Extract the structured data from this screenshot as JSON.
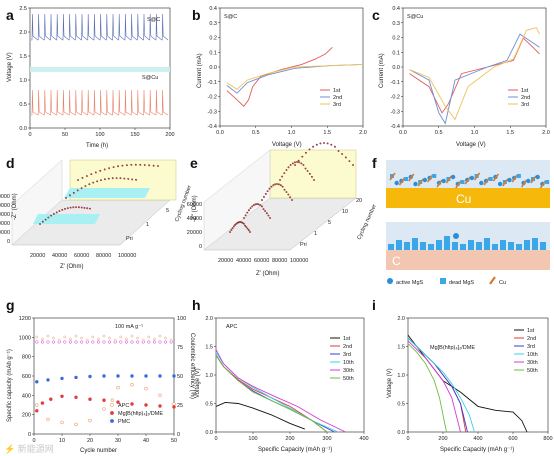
{
  "panels": {
    "a": {
      "label": "a",
      "xlabel": "Time (h)",
      "ylabel": "Voltage (V)",
      "xticks": [
        "0",
        "50",
        "100",
        "150",
        "200"
      ],
      "yticks": [
        "0.0",
        "0.5",
        "1.0",
        "1.5",
        "2.0",
        "2.5"
      ],
      "legend_top": "S@C",
      "legend_bottom": "S@Cu",
      "colors": {
        "top": "#5b6fb5",
        "bottom": "#e8826a"
      }
    },
    "b": {
      "label": "b",
      "inner": "S@C",
      "xlabel": "Voltage (V)",
      "ylabel": "Current (mA)",
      "xticks": [
        "0.0",
        "0.5",
        "1.0",
        "1.5",
        "2.0"
      ],
      "yticks": [
        "-0.4",
        "-0.3",
        "-0.2",
        "-0.1",
        "0.0",
        "0.1",
        "0.2",
        "0.3",
        "0.4"
      ]
    },
    "c": {
      "label": "c",
      "inner": "S@Cu",
      "xlabel": "Voltage (V)",
      "ylabel": "Current (mA)",
      "xticks": [
        "0.0",
        "0.5",
        "1.0",
        "1.5",
        "2.0"
      ],
      "yticks": [
        "-0.4",
        "-0.3",
        "-0.2",
        "-0.1",
        "0.0",
        "0.1",
        "0.2",
        "0.3",
        "0.4"
      ]
    },
    "d": {
      "label": "d",
      "ylabel": "-Z'' (Ohm)",
      "xlabel": "Z' (Ohm)",
      "zlabel": "Cycling number",
      "yticks": [
        "0",
        "20000",
        "40000",
        "60000",
        "80000",
        "100000"
      ],
      "xticks": [
        "20000",
        "40000",
        "60000",
        "80000",
        "100000"
      ],
      "zticks": [
        "Pri",
        "1",
        "5"
      ]
    },
    "e": {
      "label": "e",
      "ylabel": "-Z'' (Ohm)",
      "xlabel": "Z' (Ohm)",
      "zlabel": "Cycling number",
      "yticks": [
        "0",
        "20000",
        "40000",
        "60000"
      ],
      "xticks": [
        "20000",
        "40000",
        "60000",
        "80000",
        "100000"
      ],
      "zticks": [
        "Pri",
        "1",
        "5",
        "10",
        "20"
      ]
    },
    "f": {
      "label": "f",
      "cu": "Cu",
      "c": "C",
      "legend": [
        "active MgS",
        "dead MgS",
        "Cu"
      ]
    },
    "g": {
      "label": "g",
      "xlabel": "Cycle number",
      "ylabel": "Specific capacity (mAh g⁻¹)",
      "y2label": "Coulombic efficiency (%)",
      "xticks": [
        "0",
        "10",
        "20",
        "30",
        "40",
        "50"
      ],
      "yticks": [
        "0",
        "200",
        "400",
        "600",
        "800",
        "1000",
        "1200"
      ],
      "y2ticks": [
        "0",
        "25",
        "50",
        "75",
        "100"
      ],
      "note": "100 mA g⁻¹",
      "legend": [
        "APC",
        "Mg[B(hfip)₄]₂/DME",
        "PMC"
      ]
    },
    "h": {
      "label": "h",
      "inner": "APC",
      "xlabel": "Specific Capacity (mAh g⁻¹)",
      "ylabel": "Voltage (V)",
      "xticks": [
        "0",
        "100",
        "200",
        "300",
        "400"
      ],
      "yticks": [
        "0.0",
        "0.5",
        "1.0",
        "1.5",
        "2.0"
      ]
    },
    "i": {
      "label": "i",
      "inner": "Mg[B(hfip)₄]₂/DME",
      "xlabel": "Specific Capacity (mAh g⁻¹)",
      "ylabel": "Voltage (V)",
      "xticks": [
        "0",
        "200",
        "400",
        "600",
        "800"
      ],
      "yticks": [
        "0.0",
        "0.5",
        "1.0",
        "1.5",
        "2.0"
      ]
    }
  },
  "cv_legend": [
    "1st",
    "2nd",
    "3rd"
  ],
  "cv_colors": [
    "#e25b5b",
    "#6b8fd6",
    "#f0c15a"
  ],
  "gcd_legend": [
    "1st",
    "2nd",
    "3rd",
    "10th",
    "30th",
    "50th"
  ],
  "gcd_colors": [
    "#111111",
    "#e23b3b",
    "#3b3bdb",
    "#33d6e0",
    "#d43bd6",
    "#6bbf3b"
  ],
  "watermark": "⚡ 新能源网",
  "chart_data": [
    {
      "panel": "b",
      "type": "line",
      "xlim": [
        -0.1,
        2.0
      ],
      "ylim": [
        -0.45,
        0.45
      ],
      "series": [
        {
          "name": "1st",
          "x": [
            0.0,
            0.15,
            0.25,
            0.32,
            0.38,
            0.5,
            0.8,
            1.1,
            1.3,
            1.45,
            1.55
          ],
          "y": [
            -0.18,
            -0.25,
            -0.3,
            -0.25,
            -0.15,
            -0.07,
            -0.02,
            0.02,
            0.06,
            0.1,
            0.15
          ]
        },
        {
          "name": "2nd",
          "x": [
            0.0,
            0.15,
            0.3,
            0.6,
            1.0,
            1.5,
            2.0
          ],
          "y": [
            -0.14,
            -0.2,
            -0.12,
            -0.06,
            -0.01,
            0.01,
            0.02
          ]
        },
        {
          "name": "3rd",
          "x": [
            0.0,
            0.15,
            0.3,
            0.6,
            1.0,
            1.5,
            2.0
          ],
          "y": [
            -0.12,
            -0.17,
            -0.1,
            -0.05,
            0.0,
            0.01,
            0.02
          ]
        }
      ]
    },
    {
      "panel": "c",
      "type": "line",
      "xlim": [
        -0.1,
        2.1
      ],
      "ylim": [
        -0.45,
        0.45
      ],
      "series": [
        {
          "name": "1st",
          "x": [
            0.0,
            0.3,
            0.5,
            0.6,
            0.8,
            1.2,
            1.6,
            1.75,
            1.9,
            2.0
          ],
          "y": [
            -0.05,
            -0.15,
            -0.35,
            -0.28,
            -0.05,
            0.0,
            0.05,
            0.22,
            0.15,
            0.1
          ]
        },
        {
          "name": "2nd",
          "x": [
            0.0,
            0.3,
            0.45,
            0.55,
            0.7,
            1.2,
            1.5,
            1.7,
            1.85,
            2.0
          ],
          "y": [
            -0.02,
            -0.1,
            -0.35,
            -0.43,
            -0.1,
            0.0,
            0.05,
            0.25,
            0.2,
            0.15
          ]
        },
        {
          "name": "3rd",
          "x": [
            0.0,
            0.3,
            0.55,
            0.7,
            0.9,
            1.3,
            1.6,
            1.8,
            1.95,
            2.0
          ],
          "y": [
            -0.02,
            -0.08,
            -0.3,
            -0.4,
            -0.15,
            0.0,
            0.06,
            0.28,
            0.3,
            0.25
          ]
        }
      ]
    },
    {
      "panel": "g",
      "type": "scatter",
      "xlim": [
        0,
        50
      ],
      "ylim": [
        0,
        1200
      ],
      "y2lim": [
        0,
        125
      ],
      "series": [
        {
          "name": "APC",
          "axis": "left",
          "x": [
            1,
            5,
            10,
            15,
            20,
            25,
            28,
            30,
            35,
            40,
            45,
            50
          ],
          "y": [
            300,
            150,
            120,
            100,
            140,
            260,
            350,
            480,
            510,
            470,
            400,
            310
          ]
        },
        {
          "name": "Mg[B(hfip)₄]₂/DME",
          "axis": "left",
          "x": [
            1,
            3,
            6,
            10,
            15,
            20,
            25,
            30,
            35,
            40,
            45,
            50
          ],
          "y": [
            240,
            320,
            360,
            390,
            380,
            360,
            350,
            330,
            310,
            300,
            290,
            280
          ]
        },
        {
          "name": "PMC",
          "axis": "left",
          "x": [
            1,
            5,
            10,
            15,
            20,
            25,
            30,
            35,
            40,
            45,
            50
          ],
          "y": [
            540,
            560,
            575,
            585,
            595,
            600,
            600,
            600,
            600,
            600,
            600
          ]
        }
      ]
    },
    {
      "panel": "h",
      "type": "line",
      "xlim": [
        0,
        400
      ],
      "ylim": [
        0,
        2.0
      ],
      "series": [
        {
          "name": "1st",
          "x": [
            0,
            25,
            60,
            100,
            150,
            200,
            240
          ],
          "y": [
            0.45,
            0.52,
            0.5,
            0.42,
            0.3,
            0.15,
            0.05
          ]
        },
        {
          "name": "2nd",
          "x": [
            0,
            20,
            60,
            100,
            150,
            200,
            260,
            300
          ],
          "y": [
            1.35,
            1.15,
            0.92,
            0.75,
            0.6,
            0.45,
            0.2,
            0.0
          ]
        },
        {
          "name": "3rd",
          "x": [
            0,
            20,
            60,
            100,
            150,
            200,
            260,
            320
          ],
          "y": [
            1.35,
            1.15,
            0.9,
            0.72,
            0.55,
            0.4,
            0.2,
            0.0
          ]
        },
        {
          "name": "10th",
          "x": [
            0,
            20,
            60,
            100,
            150,
            200,
            260,
            330
          ],
          "y": [
            1.4,
            1.2,
            0.95,
            0.78,
            0.6,
            0.42,
            0.2,
            0.0
          ]
        },
        {
          "name": "30th",
          "x": [
            0,
            20,
            60,
            100,
            160,
            220,
            280,
            350
          ],
          "y": [
            1.45,
            1.2,
            0.95,
            0.8,
            0.62,
            0.45,
            0.22,
            0.0
          ]
        },
        {
          "name": "50th",
          "x": [
            0,
            20,
            60,
            100,
            150,
            200,
            260,
            300
          ],
          "y": [
            1.35,
            1.15,
            0.9,
            0.7,
            0.55,
            0.4,
            0.2,
            0.0
          ]
        }
      ]
    },
    {
      "panel": "i",
      "type": "line",
      "xlim": [
        0,
        800
      ],
      "ylim": [
        0,
        2.0
      ],
      "series": [
        {
          "name": "1st",
          "x": [
            0,
            100,
            200,
            300,
            400,
            500,
            600,
            650,
            680
          ],
          "y": [
            1.7,
            1.3,
            0.9,
            0.7,
            0.45,
            0.38,
            0.35,
            0.2,
            0.0
          ]
        },
        {
          "name": "2nd",
          "x": [
            0,
            50,
            100,
            150,
            200,
            250,
            300,
            330
          ],
          "y": [
            1.65,
            1.5,
            1.35,
            1.2,
            1.0,
            0.8,
            0.5,
            0.0
          ]
        },
        {
          "name": "3rd",
          "x": [
            0,
            50,
            100,
            150,
            200,
            250,
            300,
            340
          ],
          "y": [
            1.65,
            1.5,
            1.35,
            1.2,
            1.0,
            0.8,
            0.5,
            0.0
          ]
        },
        {
          "name": "10th",
          "x": [
            0,
            50,
            100,
            150,
            200,
            250,
            300,
            350,
            380
          ],
          "y": [
            1.65,
            1.5,
            1.35,
            1.2,
            1.05,
            0.85,
            0.6,
            0.3,
            0.0
          ]
        },
        {
          "name": "30th",
          "x": [
            0,
            50,
            100,
            150,
            200,
            250,
            300
          ],
          "y": [
            1.6,
            1.45,
            1.3,
            1.1,
            0.9,
            0.6,
            0.0
          ]
        },
        {
          "name": "50th",
          "x": [
            0,
            50,
            100,
            150,
            180,
            200,
            220
          ],
          "y": [
            1.55,
            1.4,
            1.2,
            0.9,
            0.6,
            0.3,
            0.0
          ]
        }
      ]
    }
  ]
}
